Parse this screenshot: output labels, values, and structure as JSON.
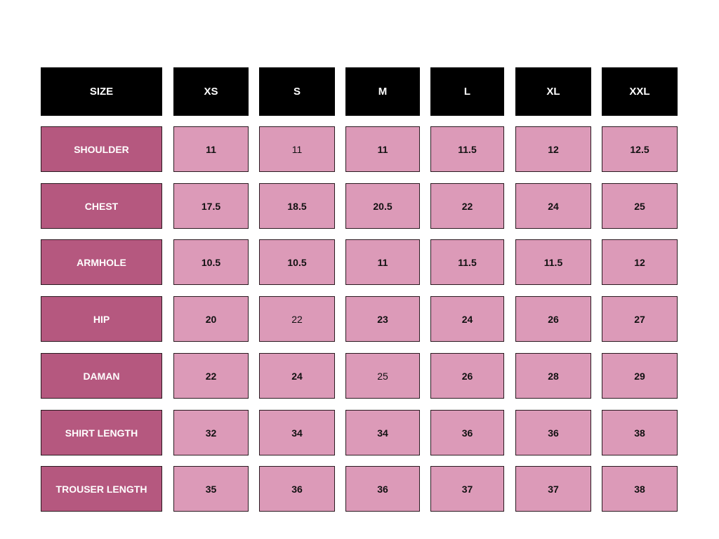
{
  "table": {
    "header": [
      "SIZE",
      "XS",
      "S",
      "M",
      "L",
      "XL",
      "XXL"
    ],
    "rows": [
      {
        "label": "SHOULDER",
        "values": [
          11,
          11,
          11,
          11.5,
          12,
          12.5
        ]
      },
      {
        "label": "CHEST",
        "values": [
          17.5,
          18.5,
          20.5,
          22,
          24,
          25
        ]
      },
      {
        "label": "ARMHOLE",
        "values": [
          10.5,
          10.5,
          11,
          11.5,
          11.5,
          12
        ]
      },
      {
        "label": "HIP",
        "values": [
          20,
          22,
          23,
          24,
          26,
          27
        ]
      },
      {
        "label": "DAMAN",
        "values": [
          22,
          24,
          25,
          26,
          28,
          29
        ]
      },
      {
        "label": "SHIRT LENGTH",
        "values": [
          32,
          34,
          34,
          36,
          36,
          38
        ]
      },
      {
        "label": "TROUSER LENGTH",
        "values": [
          35,
          36,
          36,
          37,
          37,
          38
        ]
      }
    ]
  }
}
